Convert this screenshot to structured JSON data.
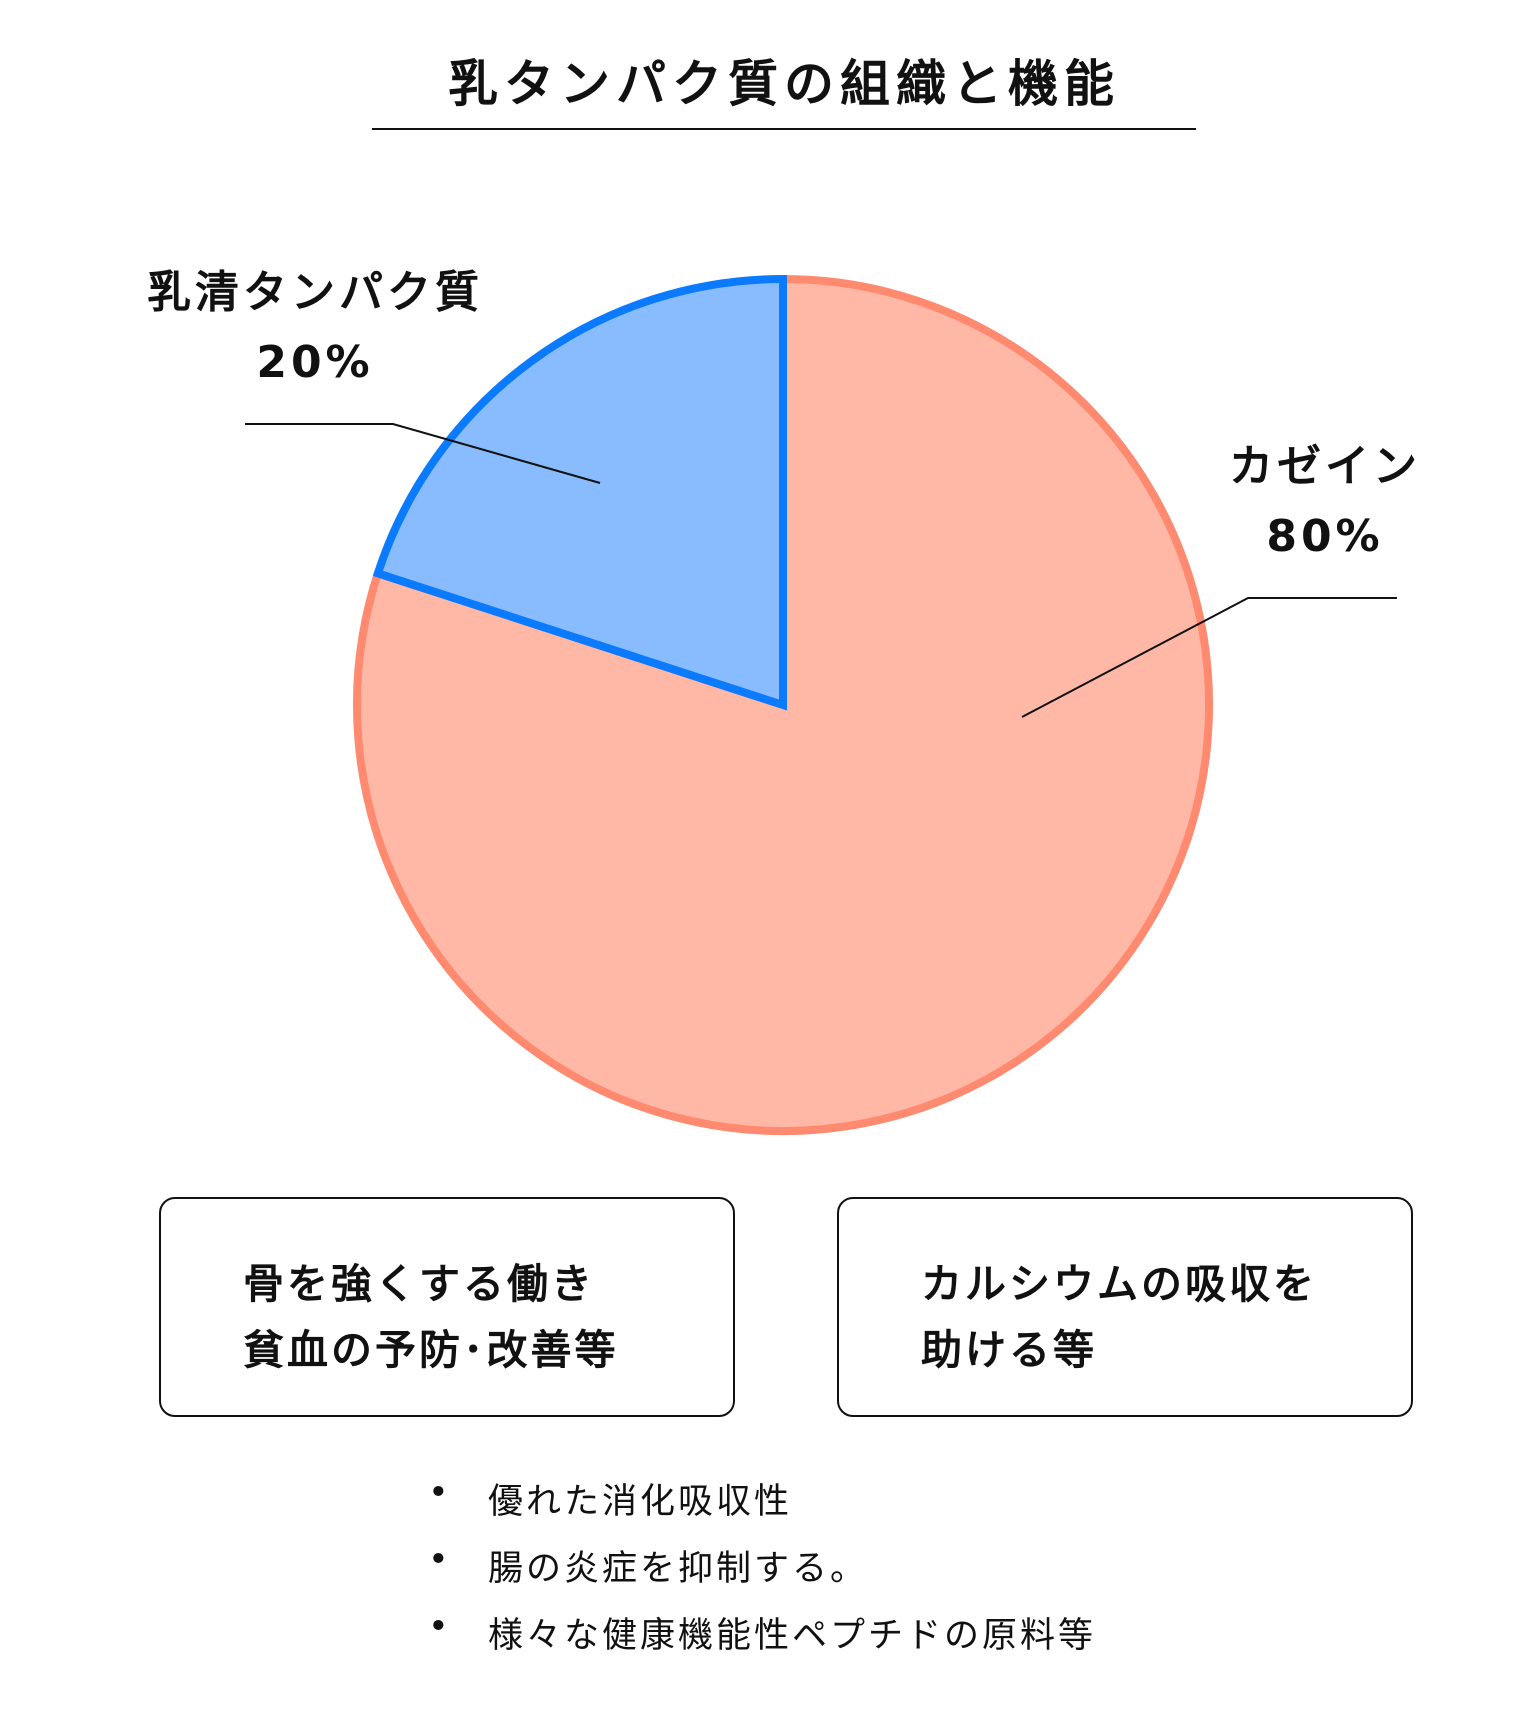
{
  "title": "乳タンパク質の組織と機能",
  "chart_data": {
    "type": "pie",
    "title": "乳タンパク質の組織と機能",
    "slices": [
      {
        "label": "カゼイン",
        "value": 80,
        "value_label": "80%",
        "fill": "#FFB8A6",
        "stroke": "#FF8A70"
      },
      {
        "label": "乳清タンパク質",
        "value": 20,
        "value_label": "20%",
        "fill": "#88BCFF",
        "stroke": "#0A7BFF"
      }
    ],
    "start_angle": "12 o'clock",
    "direction": "clockwise"
  },
  "boxes": [
    {
      "lines": [
        "骨を強くする働き",
        "貧血の予防･改善等"
      ]
    },
    {
      "lines": [
        "カルシウムの吸収を",
        "助ける等"
      ]
    }
  ],
  "bullets": {
    "marker": "•",
    "items": [
      "優れた消化吸収性",
      "腸の炎症を抑制する。",
      "様々な健康機能性ペプチドの原料等"
    ]
  }
}
